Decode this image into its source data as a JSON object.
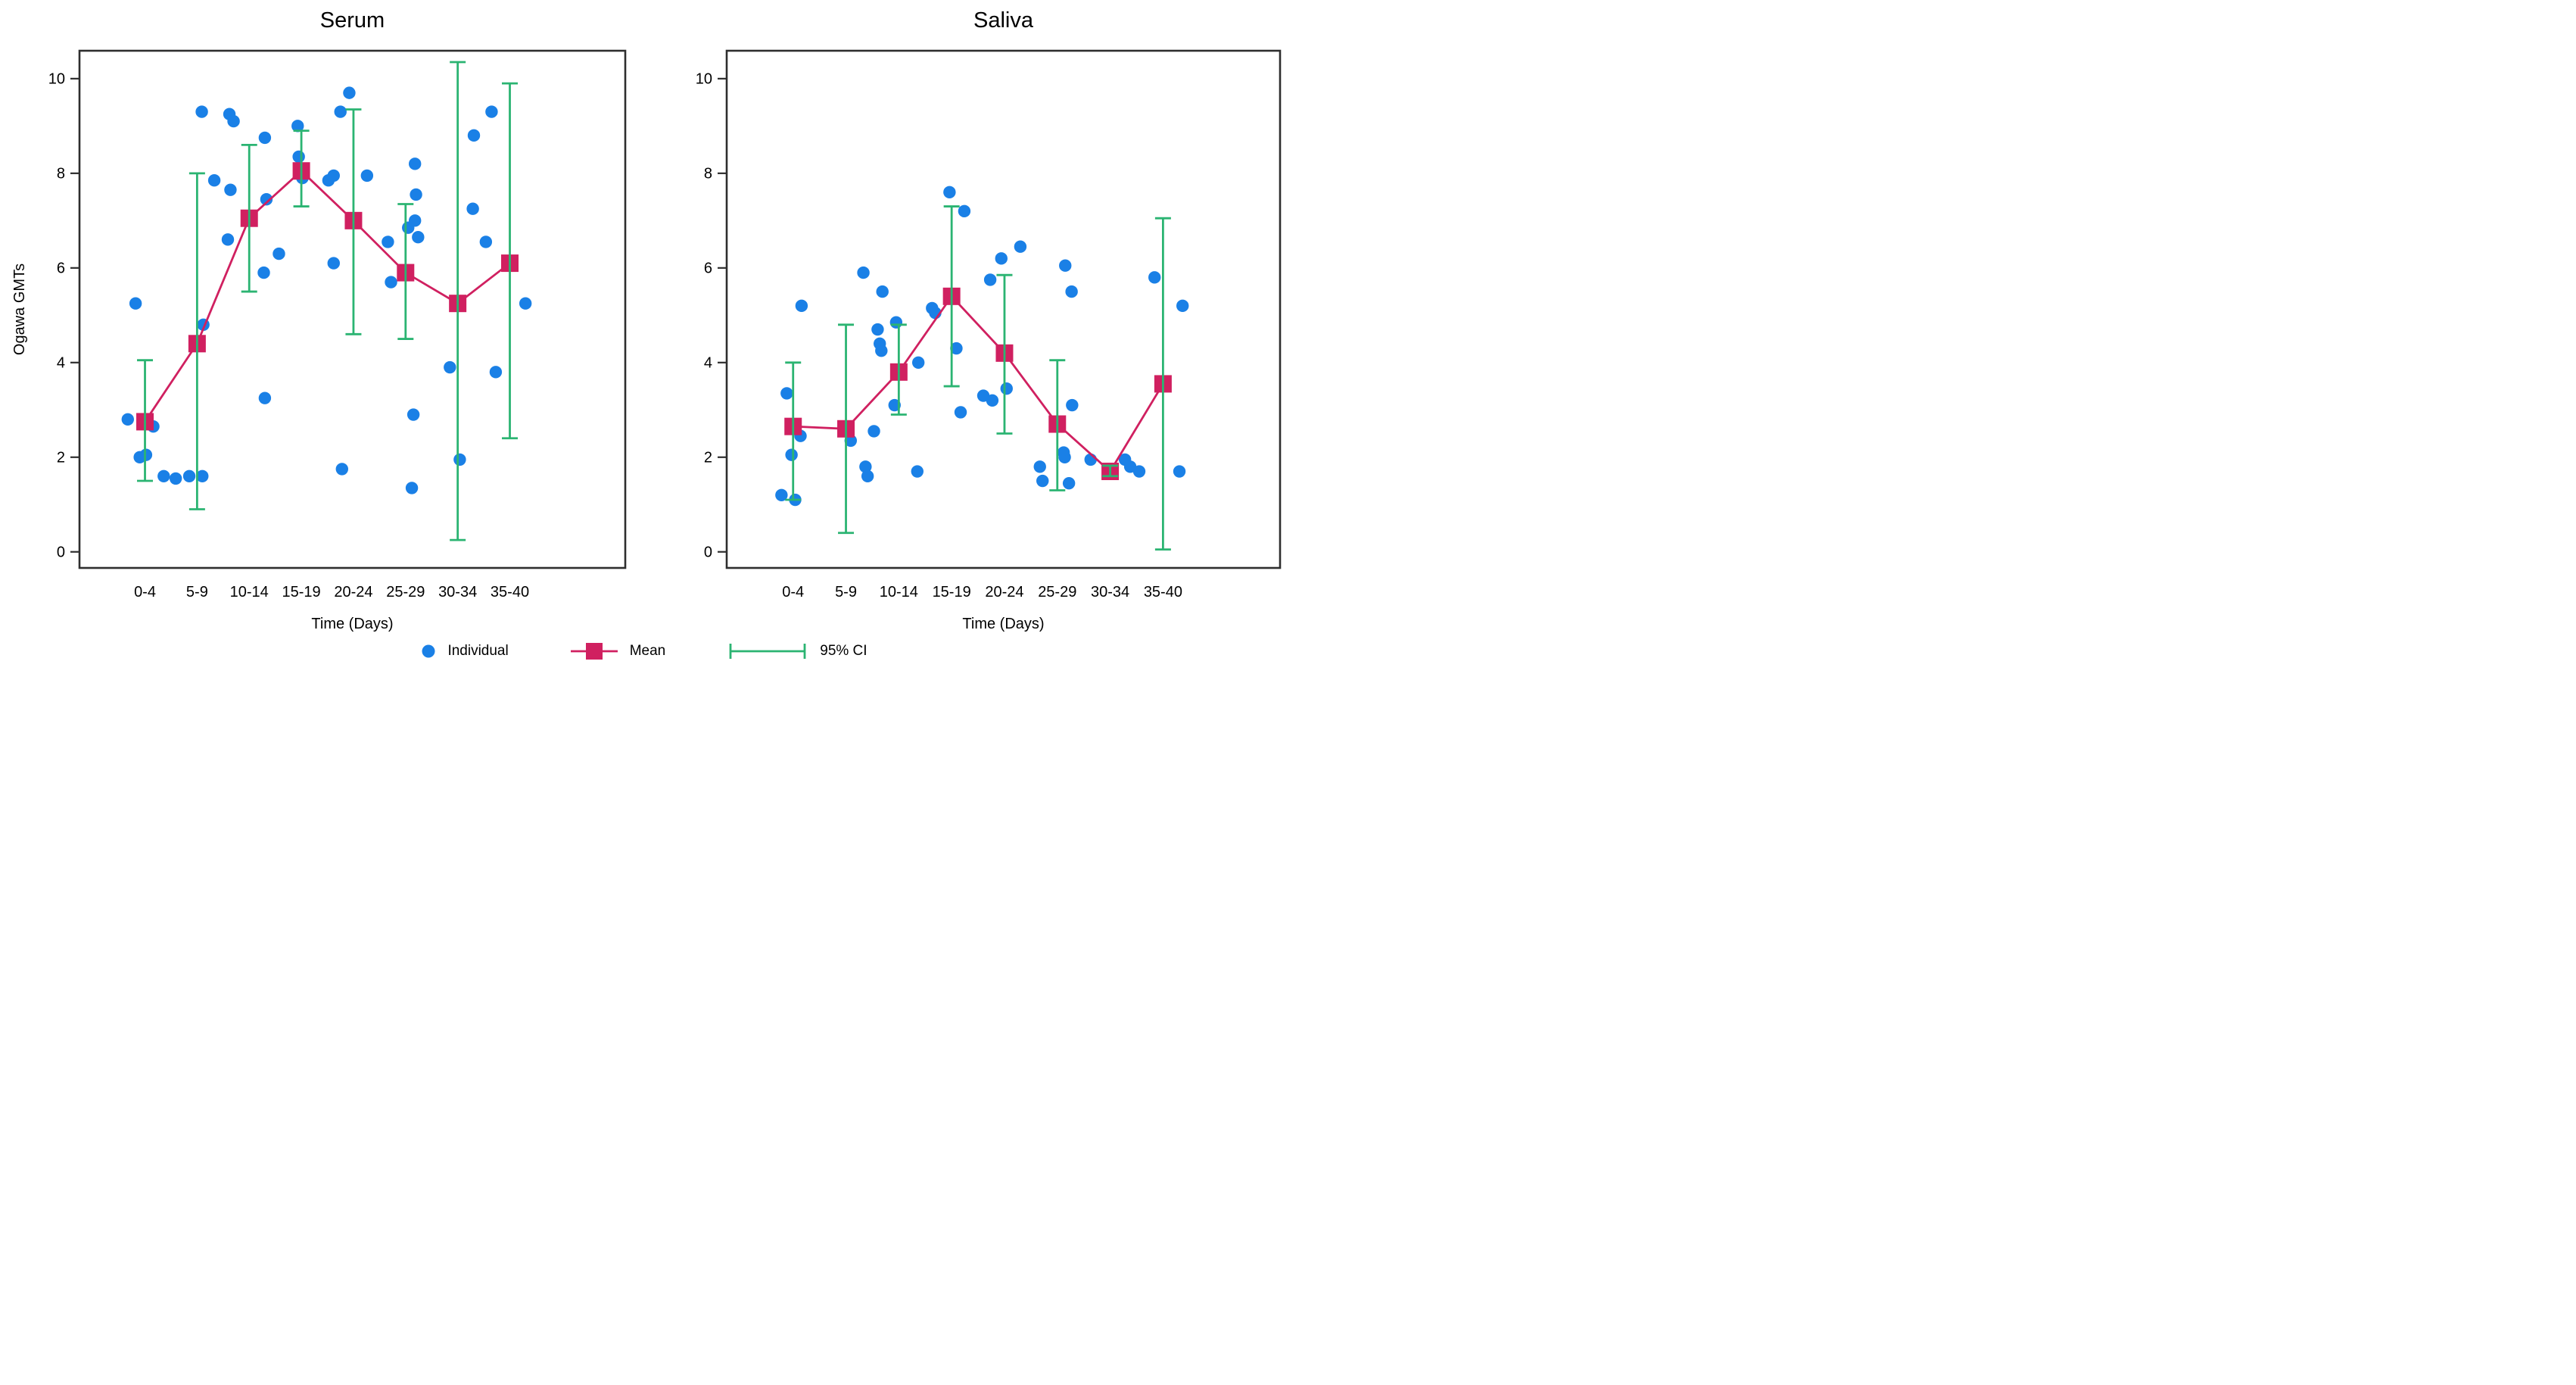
{
  "page": {
    "background": "#ffffff"
  },
  "colors": {
    "individual": "#1a80e6",
    "mean": "#d02060",
    "ci": "#2bb472",
    "axis": "#2e2e2e",
    "text": "#000000"
  },
  "legend": {
    "items": [
      {
        "label": "Individual",
        "marker": "dot"
      },
      {
        "label": "Mean",
        "marker": "square-line"
      },
      {
        "label": "95% CI",
        "marker": "error-bar"
      }
    ]
  },
  "chart_data": [
    {
      "id": "serum",
      "type": "scatter",
      "title": "Serum",
      "xlabel": "Time (Days)",
      "ylabel": "Ogawa GMTs",
      "grid": false,
      "legend_position": "bottom",
      "ylim": [
        -0.34,
        10.59
      ],
      "yticks": [
        0,
        2,
        4,
        6,
        8,
        10
      ],
      "categories": [
        "0-4",
        "5-9",
        "10-14",
        "15-19",
        "20-24",
        "25-29",
        "30-34",
        "35-40"
      ],
      "means": [
        2.75,
        4.4,
        7.05,
        8.05,
        7.0,
        5.9,
        5.25,
        6.1
      ],
      "ci_low": [
        1.5,
        0.9,
        5.5,
        7.3,
        4.6,
        4.5,
        0.25,
        2.4
      ],
      "ci_high": [
        4.05,
        8.0,
        8.6,
        8.9,
        9.35,
        7.35,
        10.35,
        9.9
      ],
      "points": [
        [
          0,
          -0.33,
          2.8
        ],
        [
          0,
          0.16,
          2.65
        ],
        [
          0,
          -0.1,
          2.0
        ],
        [
          0,
          0.02,
          2.05
        ],
        [
          0,
          -0.18,
          5.25
        ],
        [
          0,
          0.36,
          1.6
        ],
        [
          1,
          -0.41,
          1.55
        ],
        [
          1,
          -0.15,
          1.6
        ],
        [
          1,
          0.1,
          1.6
        ],
        [
          1,
          0.09,
          9.3
        ],
        [
          1,
          0.33,
          7.85
        ],
        [
          1,
          0.12,
          4.8
        ],
        [
          2,
          -0.38,
          9.25
        ],
        [
          2,
          -0.3,
          9.1
        ],
        [
          2,
          0.3,
          8.75
        ],
        [
          2,
          -0.36,
          7.65
        ],
        [
          2,
          0.33,
          7.45
        ],
        [
          2,
          -0.41,
          6.6
        ],
        [
          2,
          0.28,
          5.9
        ],
        [
          2,
          0.3,
          3.25
        ],
        [
          3,
          -0.07,
          9.0
        ],
        [
          3,
          -0.05,
          8.35
        ],
        [
          3,
          0.02,
          7.9
        ],
        [
          3,
          -0.43,
          6.3
        ],
        [
          4,
          -0.08,
          9.7
        ],
        [
          4,
          -0.25,
          9.3
        ],
        [
          4,
          -0.48,
          7.85
        ],
        [
          4,
          -0.38,
          7.95
        ],
        [
          4,
          0.26,
          7.95
        ],
        [
          4,
          -0.38,
          6.1
        ],
        [
          4,
          -0.22,
          1.75
        ],
        [
          5,
          0.18,
          8.2
        ],
        [
          5,
          0.2,
          7.55
        ],
        [
          5,
          0.18,
          7.0
        ],
        [
          5,
          0.05,
          6.85
        ],
        [
          5,
          0.24,
          6.65
        ],
        [
          5,
          -0.34,
          6.55
        ],
        [
          5,
          -0.28,
          5.7
        ],
        [
          5,
          0.15,
          2.9
        ],
        [
          5,
          0.12,
          1.35
        ],
        [
          6,
          0.31,
          8.8
        ],
        [
          6,
          0.29,
          7.25
        ],
        [
          6,
          -0.15,
          3.9
        ],
        [
          6,
          0.04,
          1.95
        ],
        [
          7,
          -0.35,
          9.3
        ],
        [
          7,
          -0.46,
          6.55
        ],
        [
          7,
          0.3,
          5.25
        ],
        [
          7,
          -0.27,
          3.8
        ]
      ]
    },
    {
      "id": "saliva",
      "type": "scatter",
      "title": "Saliva",
      "xlabel": "Time (Days)",
      "ylabel": "",
      "grid": false,
      "legend_position": "bottom",
      "ylim": [
        -0.34,
        10.59
      ],
      "yticks": [
        0,
        2,
        4,
        6,
        8,
        10
      ],
      "categories": [
        "0-4",
        "5-9",
        "10-14",
        "15-19",
        "20-24",
        "25-29",
        "30-34",
        "35-40"
      ],
      "means": [
        2.65,
        2.6,
        3.8,
        5.4,
        4.2,
        2.7,
        1.7,
        3.55
      ],
      "ci_low": [
        1.1,
        0.4,
        2.9,
        3.5,
        2.5,
        1.3,
        1.6,
        0.05
      ],
      "ci_high": [
        4.0,
        4.8,
        4.8,
        7.3,
        5.85,
        4.05,
        1.82,
        7.05
      ],
      "points": [
        [
          0,
          -0.12,
          3.35
        ],
        [
          0,
          0.14,
          2.45
        ],
        [
          0,
          -0.03,
          2.05
        ],
        [
          0,
          -0.22,
          1.2
        ],
        [
          0,
          0.04,
          1.1
        ],
        [
          0,
          0.16,
          5.2
        ],
        [
          1,
          0.33,
          5.9
        ],
        [
          1,
          0.09,
          2.35
        ],
        [
          1,
          0.37,
          1.8
        ],
        [
          1,
          0.41,
          1.6
        ],
        [
          2,
          -0.31,
          5.5
        ],
        [
          2,
          -0.05,
          4.85
        ],
        [
          2,
          -0.4,
          4.7
        ],
        [
          2,
          -0.36,
          4.4
        ],
        [
          2,
          -0.33,
          4.25
        ],
        [
          2,
          0.37,
          4.0
        ],
        [
          2,
          -0.08,
          3.1
        ],
        [
          2,
          -0.47,
          2.55
        ],
        [
          2,
          0.35,
          1.7
        ],
        [
          3,
          -0.04,
          7.6
        ],
        [
          3,
          0.24,
          7.2
        ],
        [
          3,
          -0.37,
          5.15
        ],
        [
          3,
          -0.31,
          5.05
        ],
        [
          3,
          0.09,
          4.3
        ],
        [
          3,
          0.17,
          2.95
        ],
        [
          4,
          0.3,
          6.45
        ],
        [
          4,
          -0.06,
          6.2
        ],
        [
          4,
          -0.27,
          5.75
        ],
        [
          4,
          0.04,
          3.45
        ],
        [
          4,
          -0.4,
          3.3
        ],
        [
          4,
          -0.23,
          3.2
        ],
        [
          5,
          0.15,
          6.05
        ],
        [
          5,
          0.27,
          5.5
        ],
        [
          5,
          0.28,
          3.1
        ],
        [
          5,
          0.12,
          2.1
        ],
        [
          5,
          0.14,
          2.0
        ],
        [
          5,
          -0.33,
          1.8
        ],
        [
          5,
          -0.28,
          1.5
        ],
        [
          5,
          0.22,
          1.45
        ],
        [
          6,
          -0.37,
          1.95
        ],
        [
          6,
          0.28,
          1.95
        ],
        [
          6,
          0.38,
          1.8
        ],
        [
          7,
          -0.16,
          5.8
        ],
        [
          7,
          0.37,
          5.2
        ],
        [
          7,
          -0.45,
          1.7
        ],
        [
          7,
          0.31,
          1.7
        ]
      ]
    }
  ]
}
